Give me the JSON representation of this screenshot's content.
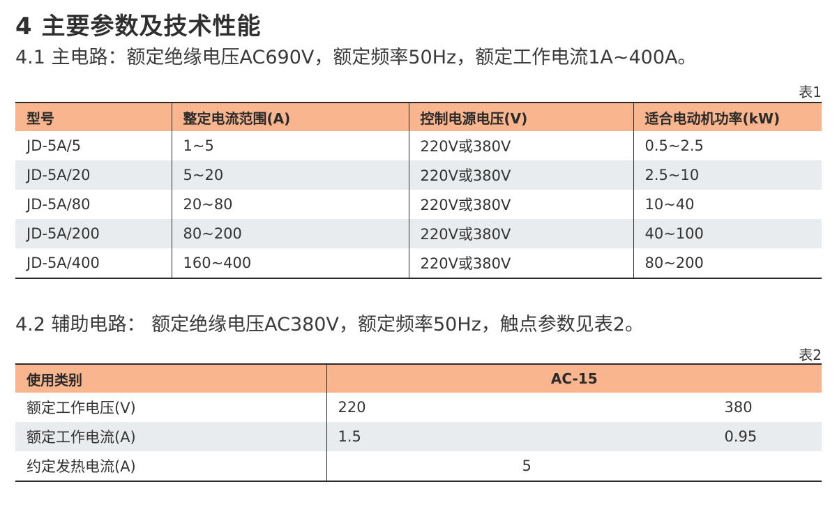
{
  "heading": "4 主要参数及技术性能",
  "section1": {
    "text": "4.1 主电路：额定绝缘电压AC690V，额定频率50Hz，额定工作电流1A~400A。",
    "caption": "表1",
    "headers": [
      "型号",
      "整定电流范围(A)",
      "控制电源电压(V)",
      "适合电动机功率(kW)"
    ],
    "rows": [
      [
        "JD-5A/5",
        "1~5",
        "220V或380V",
        "0.5~2.5"
      ],
      [
        "JD-5A/20",
        "5~20",
        "220V或380V",
        "2.5~10"
      ],
      [
        "JD-5A/80",
        "20~80",
        "220V或380V",
        "10~40"
      ],
      [
        "JD-5A/200",
        "80~200",
        "220V或380V",
        "40~100"
      ],
      [
        "JD-5A/400",
        "160~400",
        "220V或380V",
        "80~200"
      ]
    ]
  },
  "section2": {
    "text": "4.2 辅助电路： 额定绝缘电压AC380V，额定频率50Hz，触点参数见表2。",
    "caption": "表2",
    "headers": [
      "使用类别",
      "AC-15"
    ],
    "rows": [
      {
        "label": "额定工作电压(V)",
        "v1": "220",
        "v2": "380"
      },
      {
        "label": "额定工作电流(A)",
        "v1": "1.5",
        "v2": "0.95"
      },
      {
        "label": "约定发热电流(A)",
        "v": "5"
      }
    ]
  },
  "colors": {
    "header_bg": "#f9b58d",
    "stripe_bg": "#e9ecee",
    "text": "#3a3a3a"
  }
}
